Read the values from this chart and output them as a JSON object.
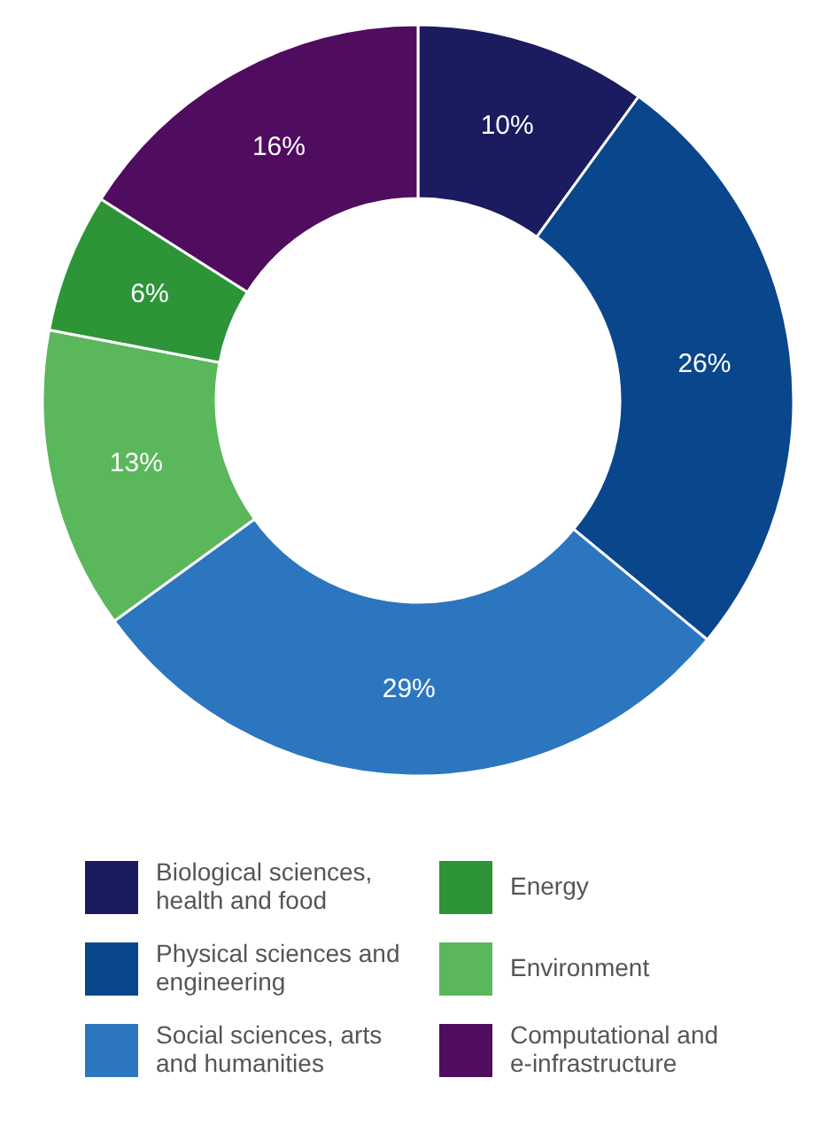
{
  "chart_data": {
    "type": "donut",
    "categories": [
      "Biological sciences, health and food",
      "Physical sciences and engineering",
      "Social sciences, arts and humanities",
      "Environment",
      "Energy",
      "Computational and e-infrastructure"
    ],
    "values": [
      10,
      26,
      29,
      13,
      6,
      16
    ],
    "colors": [
      "#1b1b5f",
      "#0a468c",
      "#2b76bf",
      "#5bb75b",
      "#2e9438",
      "#500c5e"
    ],
    "value_labels": [
      "10%",
      "26%",
      "29%",
      "13%",
      "6%",
      "16%"
    ],
    "legend": "bottom"
  }
}
